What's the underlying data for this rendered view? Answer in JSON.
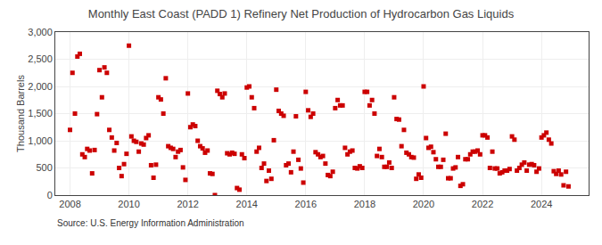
{
  "chart_data": {
    "type": "scatter",
    "title": "Monthly East Coast (PADD 1) Refinery Net Production of Hydrocarbon Gas Liquids",
    "ylabel": "Thousand Barrels",
    "annotations": [
      "Source: U.S. Energy Information Administration"
    ],
    "color": "#cc0000",
    "marker": "square",
    "grid": true,
    "xlim": [
      2007.5,
      2025.6
    ],
    "xticks": [
      2008,
      2010,
      2012,
      2014,
      2016,
      2018,
      2020,
      2022,
      2024
    ],
    "ylim": [
      0,
      3000
    ],
    "yticks": [
      0,
      500,
      {
        "value": 1000,
        "label": "1,000"
      },
      {
        "value": 1500,
        "label": "1,500"
      },
      {
        "value": 2000,
        "label": "2,000"
      },
      {
        "value": 2500,
        "label": "2,500"
      },
      {
        "value": 3000,
        "label": "3,000"
      }
    ],
    "x": [
      2008.0,
      2008.083,
      2008.167,
      2008.25,
      2008.333,
      2008.417,
      2008.5,
      2008.583,
      2008.667,
      2008.75,
      2008.833,
      2008.917,
      2009.0,
      2009.083,
      2009.167,
      2009.25,
      2009.333,
      2009.417,
      2009.5,
      2009.583,
      2009.667,
      2009.75,
      2009.833,
      2009.917,
      2010.0,
      2010.083,
      2010.167,
      2010.25,
      2010.333,
      2010.417,
      2010.5,
      2010.583,
      2010.667,
      2010.75,
      2010.833,
      2010.917,
      2011.0,
      2011.083,
      2011.167,
      2011.25,
      2011.333,
      2011.417,
      2011.5,
      2011.583,
      2011.667,
      2011.75,
      2011.833,
      2011.917,
      2012.0,
      2012.083,
      2012.167,
      2012.25,
      2012.333,
      2012.417,
      2012.5,
      2012.583,
      2012.667,
      2012.75,
      2012.833,
      2012.917,
      2013.0,
      2013.083,
      2013.167,
      2013.25,
      2013.333,
      2013.417,
      2013.5,
      2013.583,
      2013.667,
      2013.75,
      2013.833,
      2013.917,
      2014.0,
      2014.083,
      2014.167,
      2014.25,
      2014.333,
      2014.417,
      2014.5,
      2014.583,
      2014.667,
      2014.75,
      2014.833,
      2014.917,
      2015.0,
      2015.083,
      2015.167,
      2015.25,
      2015.333,
      2015.417,
      2015.5,
      2015.583,
      2015.667,
      2015.75,
      2015.833,
      2015.917,
      2016.0,
      2016.083,
      2016.167,
      2016.25,
      2016.333,
      2016.417,
      2016.5,
      2016.583,
      2016.667,
      2016.75,
      2016.833,
      2016.917,
      2017.0,
      2017.083,
      2017.167,
      2017.25,
      2017.333,
      2017.417,
      2017.5,
      2017.583,
      2017.667,
      2017.75,
      2017.833,
      2017.917,
      2018.0,
      2018.083,
      2018.167,
      2018.25,
      2018.333,
      2018.417,
      2018.5,
      2018.583,
      2018.667,
      2018.75,
      2018.833,
      2018.917,
      2019.0,
      2019.083,
      2019.167,
      2019.25,
      2019.333,
      2019.417,
      2019.5,
      2019.583,
      2019.667,
      2019.75,
      2019.833,
      2019.917,
      2020.0,
      2020.083,
      2020.167,
      2020.25,
      2020.333,
      2020.417,
      2020.5,
      2020.583,
      2020.667,
      2020.75,
      2020.833,
      2020.917,
      2021.0,
      2021.083,
      2021.167,
      2021.25,
      2021.333,
      2021.417,
      2021.5,
      2021.583,
      2021.667,
      2021.75,
      2021.833,
      2021.917,
      2022.0,
      2022.083,
      2022.167,
      2022.25,
      2022.333,
      2022.417,
      2022.5,
      2022.583,
      2022.667,
      2022.75,
      2022.833,
      2022.917,
      2023.0,
      2023.083,
      2023.167,
      2023.25,
      2023.333,
      2023.417,
      2023.5,
      2023.583,
      2023.667,
      2023.75,
      2023.833,
      2023.917,
      2024.0,
      2024.083,
      2024.167,
      2024.25,
      2024.333,
      2024.417,
      2024.5,
      2024.583,
      2024.667,
      2024.75,
      2024.833,
      2024.917
    ],
    "values": [
      1200,
      2250,
      1500,
      2550,
      2600,
      750,
      700,
      850,
      820,
      400,
      830,
      1490,
      2300,
      1800,
      2350,
      2250,
      1200,
      1060,
      820,
      960,
      500,
      350,
      570,
      760,
      2750,
      1080,
      1000,
      980,
      800,
      950,
      930,
      1050,
      1100,
      550,
      320,
      560,
      1800,
      1760,
      1500,
      2150,
      900,
      870,
      850,
      700,
      800,
      830,
      510,
      280,
      1870,
      1250,
      1300,
      1270,
      1000,
      900,
      860,
      780,
      820,
      400,
      390,
      0,
      1920,
      1860,
      1800,
      1870,
      770,
      750,
      780,
      760,
      130,
      100,
      750,
      680,
      1980,
      2000,
      1800,
      1600,
      800,
      870,
      500,
      580,
      260,
      450,
      300,
      1010,
      1940,
      1550,
      1500,
      1460,
      550,
      580,
      420,
      800,
      1450,
      650,
      490,
      230,
      1900,
      1560,
      1440,
      1500,
      790,
      750,
      700,
      720,
      580,
      370,
      350,
      430,
      1600,
      1750,
      1650,
      1650,
      870,
      750,
      800,
      820,
      500,
      490,
      530,
      500,
      1900,
      1900,
      1650,
      1750,
      1500,
      720,
      850,
      700,
      520,
      520,
      600,
      500,
      1800,
      1400,
      1390,
      900,
      1200,
      780,
      750,
      700,
      690,
      300,
      380,
      320,
      2000,
      1050,
      870,
      890,
      790,
      660,
      520,
      520,
      650,
      1130,
      310,
      310,
      490,
      510,
      700,
      170,
      200,
      660,
      660,
      750,
      800,
      800,
      820,
      750,
      1100,
      1100,
      1060,
      500,
      800,
      490,
      490,
      400,
      420,
      450,
      450,
      480,
      1080,
      1020,
      450,
      500,
      560,
      600,
      450,
      560,
      570,
      550,
      430,
      490,
      1060,
      1100,
      1150,
      1020,
      950,
      440,
      390,
      450,
      380,
      180,
      430,
      160
    ]
  }
}
